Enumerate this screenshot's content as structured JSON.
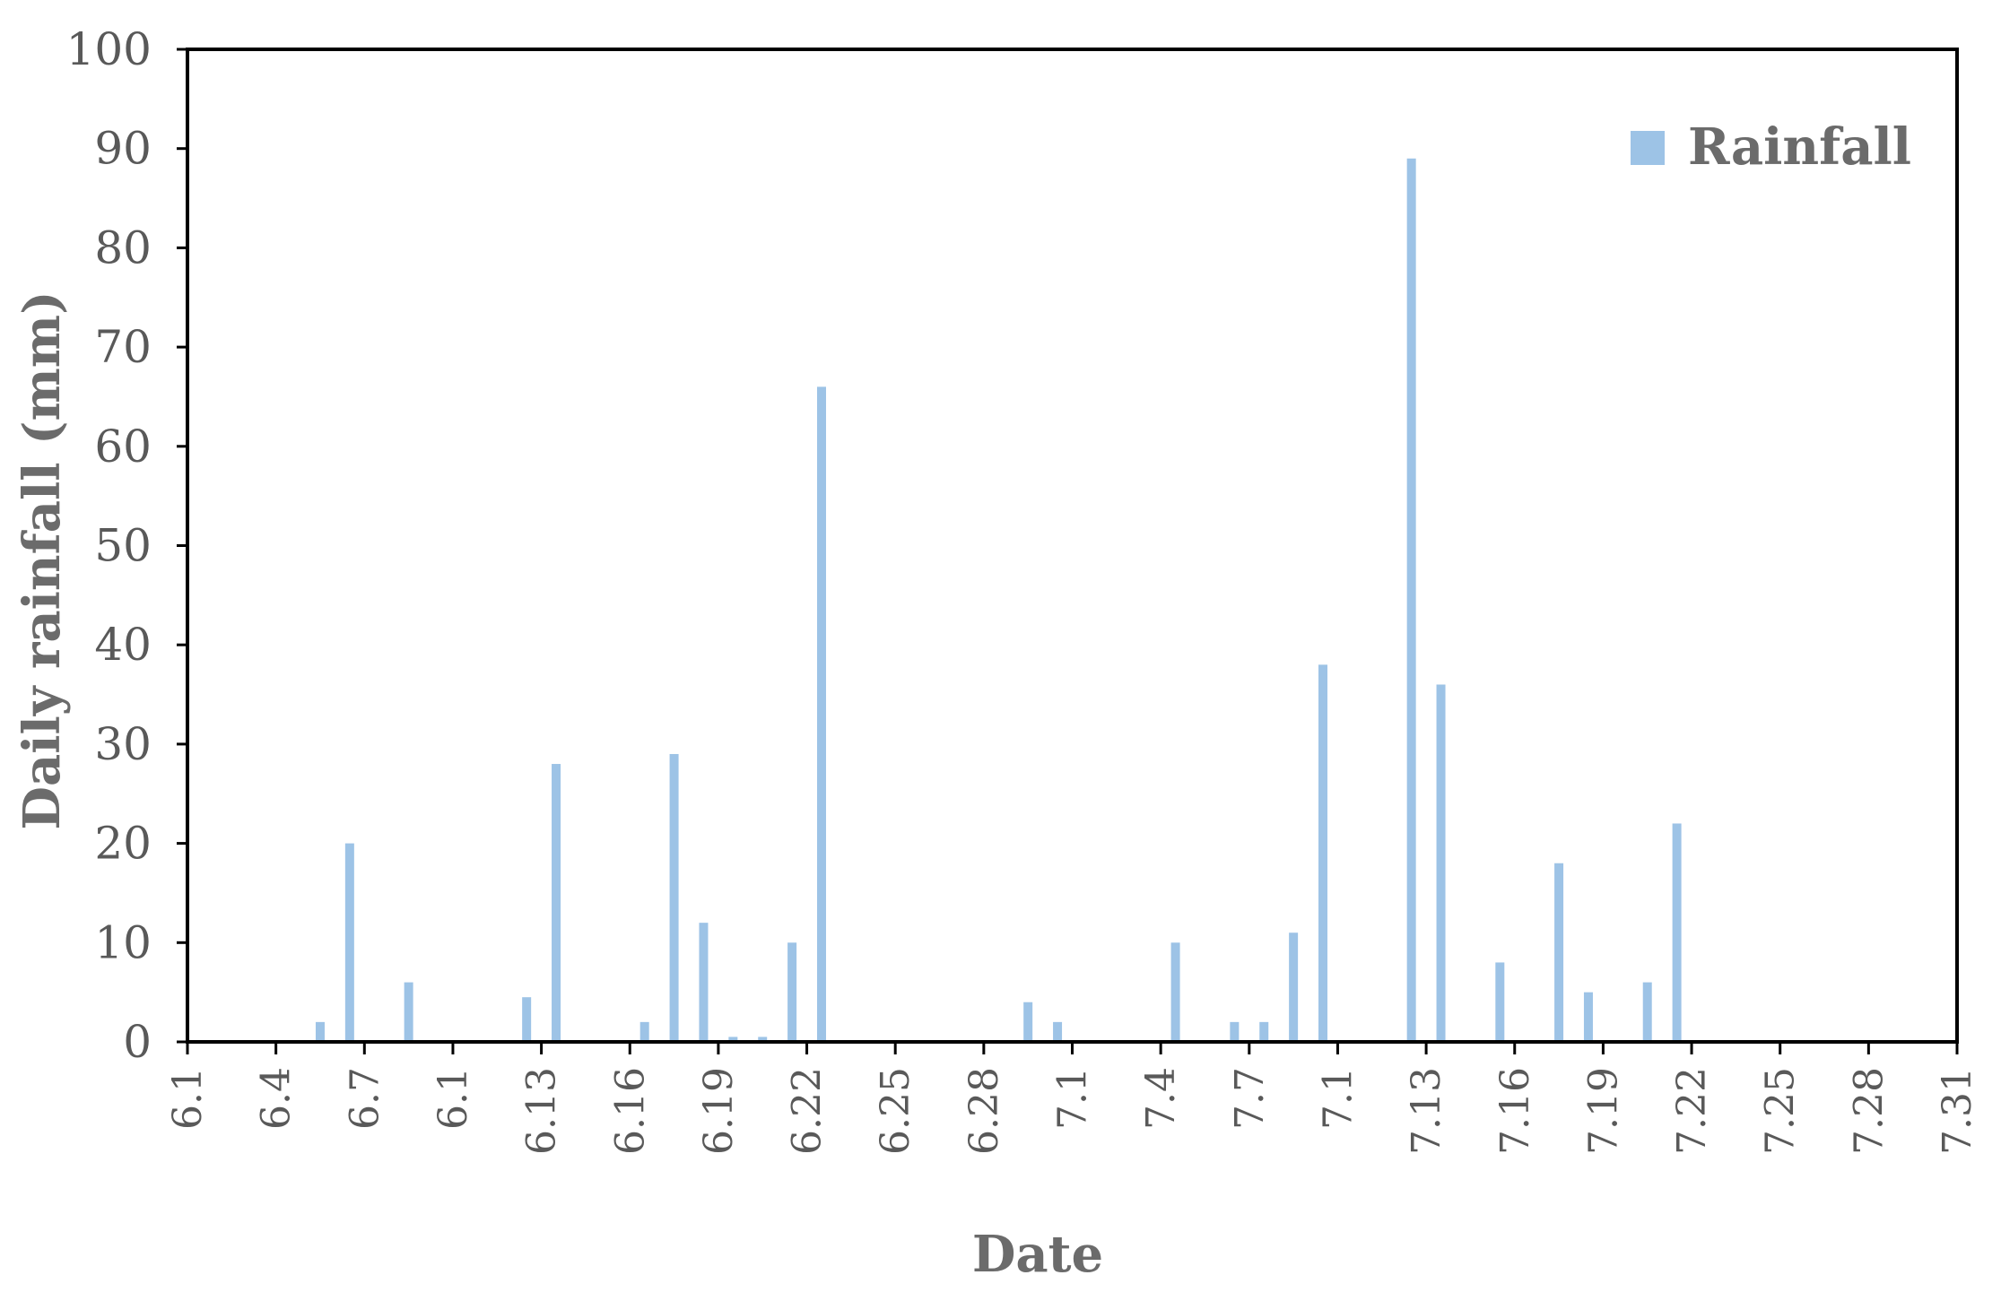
{
  "chart_data": {
    "type": "bar",
    "xlabel": "Date",
    "ylabel": "Daily rainfall (mm)",
    "ylim": [
      0,
      100
    ],
    "yticks": [
      0,
      10,
      20,
      30,
      40,
      50,
      60,
      70,
      80,
      90,
      100
    ],
    "xtick_labels": [
      "6.1",
      "6.4",
      "6.7",
      "6.1",
      "6.13",
      "6.16",
      "6.19",
      "6.22",
      "6.25",
      "6.28",
      "7.1",
      "7.4",
      "7.7",
      "7.1",
      "7.13",
      "7.16",
      "7.19",
      "7.22",
      "7.25",
      "7.28",
      "7.31"
    ],
    "grid": false,
    "legend": {
      "position": "top-right",
      "entries": [
        "Rainfall"
      ]
    },
    "colors": {
      "bar": "#9dc3e6",
      "axis": "#000000",
      "text": "#595959"
    },
    "series": [
      {
        "name": "Rainfall",
        "points": [
          {
            "date": "6.5",
            "value": 2
          },
          {
            "date": "6.6",
            "value": 20
          },
          {
            "date": "6.8",
            "value": 6
          },
          {
            "date": "6.12",
            "value": 4.5
          },
          {
            "date": "6.13",
            "value": 28
          },
          {
            "date": "6.16",
            "value": 2
          },
          {
            "date": "6.17",
            "value": 29
          },
          {
            "date": "6.18",
            "value": 12
          },
          {
            "date": "6.19",
            "value": 0.5
          },
          {
            "date": "6.20",
            "value": 0.5
          },
          {
            "date": "6.21",
            "value": 10
          },
          {
            "date": "6.22",
            "value": 66
          },
          {
            "date": "6.29",
            "value": 4
          },
          {
            "date": "6.30",
            "value": 2
          },
          {
            "date": "7.4",
            "value": 10
          },
          {
            "date": "7.6",
            "value": 2
          },
          {
            "date": "7.7",
            "value": 2
          },
          {
            "date": "7.8",
            "value": 11
          },
          {
            "date": "7.9",
            "value": 38
          },
          {
            "date": "7.12",
            "value": 89
          },
          {
            "date": "7.13",
            "value": 36
          },
          {
            "date": "7.15",
            "value": 8
          },
          {
            "date": "7.17",
            "value": 18
          },
          {
            "date": "7.18",
            "value": 5
          },
          {
            "date": "7.20",
            "value": 6
          },
          {
            "date": "7.21",
            "value": 22
          }
        ]
      }
    ]
  }
}
